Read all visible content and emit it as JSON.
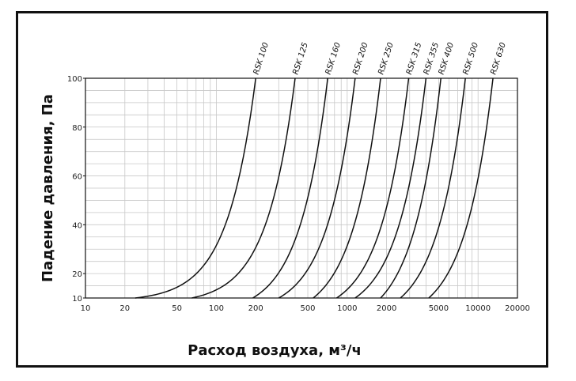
{
  "chart_data": {
    "type": "line",
    "xlabel": "Расход воздуха, м³/ч",
    "ylabel": "Падение давления, Па",
    "x_scale": "log",
    "y_scale": "linear",
    "xlim": [
      10,
      20000
    ],
    "ylim": [
      10,
      100
    ],
    "grid": true,
    "x_ticks": [
      {
        "value": 10,
        "label": "10"
      },
      {
        "value": 20,
        "label": "20"
      },
      {
        "value": 50,
        "label": "50"
      },
      {
        "value": 100,
        "label": "100"
      },
      {
        "value": 200,
        "label": "200"
      },
      {
        "value": 500,
        "label": "500"
      },
      {
        "value": 1000,
        "label": "1000"
      },
      {
        "value": 2000,
        "label": "2000"
      },
      {
        "value": 5000,
        "label": "5000"
      },
      {
        "value": 10000,
        "label": "10000"
      },
      {
        "value": 20000,
        "label": "20000"
      }
    ],
    "y_ticks": [
      {
        "value": 10,
        "label": "10"
      },
      {
        "value": 20,
        "label": "20"
      },
      {
        "value": 40,
        "label": "40"
      },
      {
        "value": 60,
        "label": "60"
      },
      {
        "value": 80,
        "label": "80"
      },
      {
        "value": 100,
        "label": "100"
      }
    ],
    "series": [
      {
        "name": "RSK 100",
        "points": [
          [
            24,
            10
          ],
          [
            200,
            100
          ]
        ]
      },
      {
        "name": "RSK 125",
        "points": [
          [
            65,
            10
          ],
          [
            400,
            100
          ]
        ]
      },
      {
        "name": "RSK 160",
        "points": [
          [
            190,
            10
          ],
          [
            710,
            100
          ]
        ]
      },
      {
        "name": "RSK 200",
        "points": [
          [
            300,
            10
          ],
          [
            1150,
            100
          ]
        ]
      },
      {
        "name": "RSK 250",
        "points": [
          [
            550,
            10
          ],
          [
            1800,
            100
          ]
        ]
      },
      {
        "name": "RSK 315",
        "points": [
          [
            830,
            10
          ],
          [
            2950,
            100
          ]
        ]
      },
      {
        "name": "RSK 355",
        "points": [
          [
            1150,
            10
          ],
          [
            4000,
            100
          ]
        ]
      },
      {
        "name": "RSK 400",
        "points": [
          [
            1800,
            10
          ],
          [
            5200,
            100
          ]
        ]
      },
      {
        "name": "RSK 500",
        "points": [
          [
            2550,
            10
          ],
          [
            8000,
            100
          ]
        ]
      },
      {
        "name": "RSK 630",
        "points": [
          [
            4200,
            10
          ],
          [
            13000,
            100
          ]
        ]
      }
    ]
  }
}
